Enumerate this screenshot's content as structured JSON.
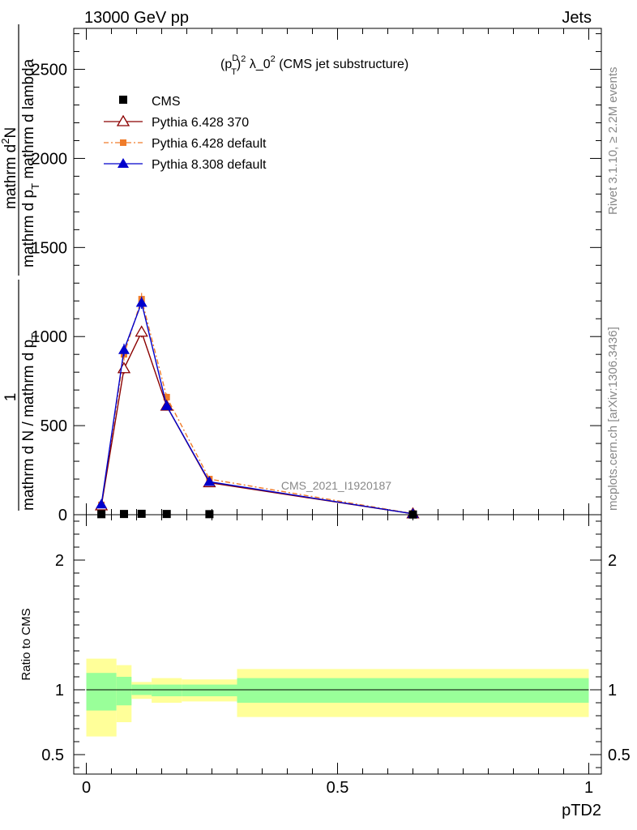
{
  "chart_data": [
    {
      "type": "line",
      "panel": "main",
      "header_left": "13000 GeV pp",
      "header_right": "Jets",
      "title": "(p_T^D)^2 λ_0^2 (CMS jet substructure)",
      "title_parts": {
        "open": "(p",
        "sup_d": "D",
        "sub_t": "T",
        "close": ")",
        "sup_2": "2",
        "lambda": " λ_0",
        "sup_2b": "2",
        "rest": " (CMS jet substructure)"
      },
      "ylabel_numerator": "mathrm d²N",
      "ylabel_numerator_1": "mathrm d",
      "ylabel_numerator_sup": "2",
      "ylabel_numerator_2": "N",
      "ylabel_denominator": "mathrm d p_T mathrm d lambda",
      "ylabel_den_1": "mathrm d p",
      "ylabel_den_sub": "T",
      "ylabel_den_2": " mathrm d lambda",
      "ylabel_prefactor_numerator": "1",
      "ylabel_prefactor_denominator": "mathrm d N / mathrm d p_T",
      "ylabel_pre_den_1": "mathrm d N / mathrm d p",
      "ylabel_pre_den_sub": "T",
      "ylim": [
        0,
        2730
      ],
      "xlim": [
        -0.025,
        1.025
      ],
      "yticks": [
        0,
        500,
        1000,
        1500,
        2000,
        2500
      ],
      "yticklabels": [
        "0",
        "500",
        "1000",
        "1500",
        "2000",
        "2500"
      ],
      "watermark": "CMS_2021_I1920187",
      "side_label_top": "Rivet 3.1.10, ≥ 2.2M events",
      "side_label_bottom": "mcplots.cern.ch [arXiv:1306.3436]",
      "series": [
        {
          "name": "CMS",
          "color": "#000000",
          "marker": "square",
          "x": [
            0.03,
            0.075,
            0.11,
            0.16,
            0.245,
            0.65
          ],
          "y": [
            3,
            4,
            5,
            4,
            3,
            1
          ]
        },
        {
          "name": "Pythia 6.428 370",
          "color": "#8b0000",
          "marker": "open-triangle",
          "x": [
            0.03,
            0.075,
            0.11,
            0.16,
            0.245,
            0.65
          ],
          "y": [
            50,
            820,
            1025,
            610,
            180,
            5
          ],
          "err": [
            5,
            30,
            30,
            15,
            10,
            1
          ]
        },
        {
          "name": "Pythia 6.428 default",
          "color": "#f07c2a",
          "marker": "filled-square",
          "dash": "6,3,2,3",
          "x": [
            0.03,
            0.075,
            0.11,
            0.16,
            0.245,
            0.65
          ],
          "y": [
            55,
            900,
            1210,
            660,
            200,
            6
          ],
          "err": [
            5,
            35,
            35,
            20,
            10,
            1
          ]
        },
        {
          "name": "Pythia 8.308 default",
          "color": "#0000cc",
          "marker": "filled-triangle",
          "x": [
            0.03,
            0.075,
            0.11,
            0.16,
            0.245,
            0.65
          ],
          "y": [
            58,
            925,
            1190,
            610,
            185,
            5
          ],
          "err": [
            5,
            35,
            35,
            20,
            10,
            1
          ]
        }
      ]
    },
    {
      "type": "area",
      "panel": "ratio",
      "ylabel": "Ratio to CMS",
      "xlabel": "pTD2",
      "ylim": [
        0.35,
        2.35
      ],
      "xlim": [
        -0.025,
        1.025
      ],
      "yticks": [
        0.5,
        1,
        2
      ],
      "yticklabels": [
        "0.5",
        "1",
        "2"
      ],
      "xticks": [
        0,
        0.5,
        1
      ],
      "xticklabels": [
        "0",
        "0.5",
        "1"
      ],
      "reference_line": 1,
      "band_colors": {
        "inner": "#99ff99",
        "outer": "#ffff99"
      },
      "bins": [
        {
          "x0": 0.0,
          "x1": 0.06,
          "inner": [
            0.84,
            1.13
          ],
          "outer": [
            0.64,
            1.24
          ]
        },
        {
          "x0": 0.06,
          "x1": 0.09,
          "inner": [
            0.88,
            1.1
          ],
          "outer": [
            0.75,
            1.19
          ]
        },
        {
          "x0": 0.09,
          "x1": 0.13,
          "inner": [
            0.96,
            1.04
          ],
          "outer": [
            0.93,
            1.06
          ]
        },
        {
          "x0": 0.13,
          "x1": 0.19,
          "inner": [
            0.95,
            1.04
          ],
          "outer": [
            0.9,
            1.09
          ]
        },
        {
          "x0": 0.19,
          "x1": 0.3,
          "inner": [
            0.95,
            1.04
          ],
          "outer": [
            0.91,
            1.08
          ]
        },
        {
          "x0": 0.3,
          "x1": 1.0,
          "inner": [
            0.9,
            1.09
          ],
          "outer": [
            0.79,
            1.16
          ]
        }
      ]
    }
  ]
}
